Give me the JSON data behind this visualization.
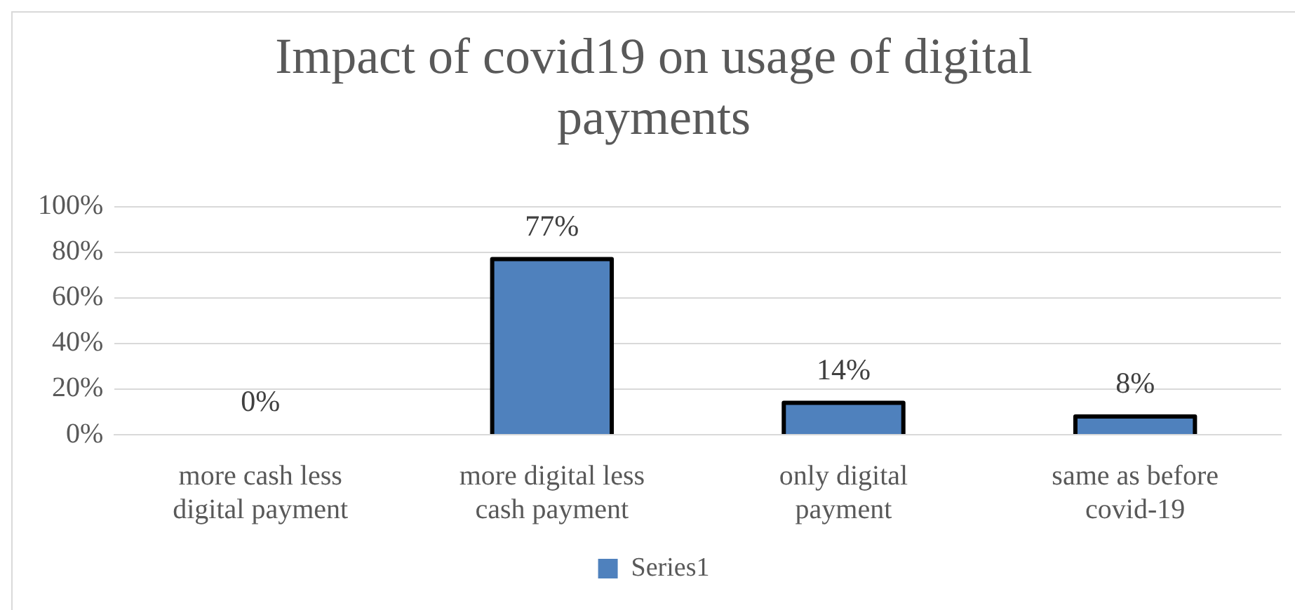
{
  "chart_data": {
    "type": "bar",
    "title": "Impact of covid19 on usage of digital payments",
    "categories": [
      "more cash less digital payment",
      "more digital less cash payment",
      "only digital payment",
      "same as before covid-19"
    ],
    "series": [
      {
        "name": "Series1",
        "color": "#4f81bd",
        "values": [
          0,
          77,
          14,
          8
        ]
      }
    ],
    "ylim": [
      0,
      100
    ],
    "yticks": [
      {
        "value": 0,
        "label": "0%"
      },
      {
        "value": 20,
        "label": "20%"
      },
      {
        "value": 40,
        "label": "40%"
      },
      {
        "value": 60,
        "label": "60%"
      },
      {
        "value": 80,
        "label": "80%"
      },
      {
        "value": 100,
        "label": "100%"
      }
    ],
    "value_labels": [
      "0%",
      "77%",
      "14%",
      "8%"
    ],
    "grid": "y",
    "legend": "bottom"
  }
}
